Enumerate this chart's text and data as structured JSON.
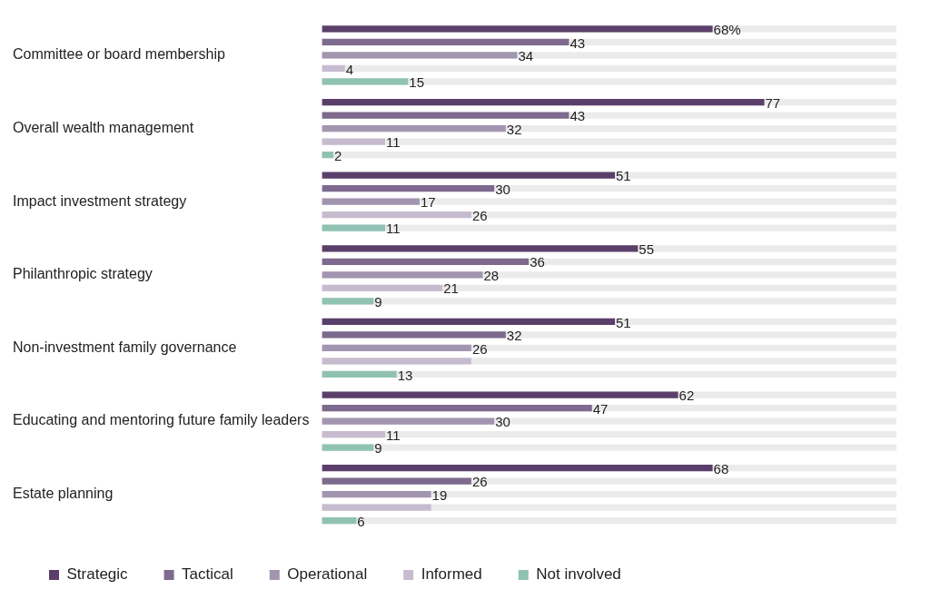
{
  "chart_data": {
    "type": "bar",
    "orientation": "horizontal",
    "categories": [
      "Committee or board membership",
      "Overall wealth management",
      "Impact investment strategy",
      "Philanthropic strategy",
      "Non-investment family governance",
      "Educating and mentoring future family leaders",
      "Estate planning"
    ],
    "series": [
      {
        "name": "Strategic",
        "color": "#5b3f6b",
        "values": [
          68,
          77,
          51,
          55,
          51,
          62,
          68
        ],
        "value_labels": [
          "68%",
          "77",
          "51",
          "55",
          "51",
          "62",
          "68"
        ]
      },
      {
        "name": "Tactical",
        "color": "#7e6a8e",
        "values": [
          43,
          43,
          30,
          36,
          32,
          47,
          26
        ],
        "value_labels": [
          "43",
          "43",
          "30",
          "36",
          "32",
          "47",
          "26"
        ]
      },
      {
        "name": "Operational",
        "color": "#a295b0",
        "values": [
          34,
          32,
          17,
          28,
          26,
          30,
          19
        ],
        "value_labels": [
          "34",
          "32",
          "17",
          "28",
          "26",
          "30",
          "19"
        ]
      },
      {
        "name": "Informed",
        "color": "#c7bccf",
        "values": [
          4,
          11,
          26,
          21,
          26,
          11,
          19
        ],
        "value_labels": [
          "4",
          "11",
          "26",
          "21",
          null,
          "11",
          null
        ]
      },
      {
        "name": "Not involved",
        "color": "#8fc2b3",
        "values": [
          15,
          2,
          11,
          9,
          13,
          9,
          6
        ],
        "value_labels": [
          "15",
          "2",
          "11",
          "9",
          "13",
          "9",
          "6"
        ]
      }
    ],
    "xlim": [
      0,
      100
    ],
    "tick_labels": "y",
    "grid": false,
    "legend": "bottom left"
  }
}
